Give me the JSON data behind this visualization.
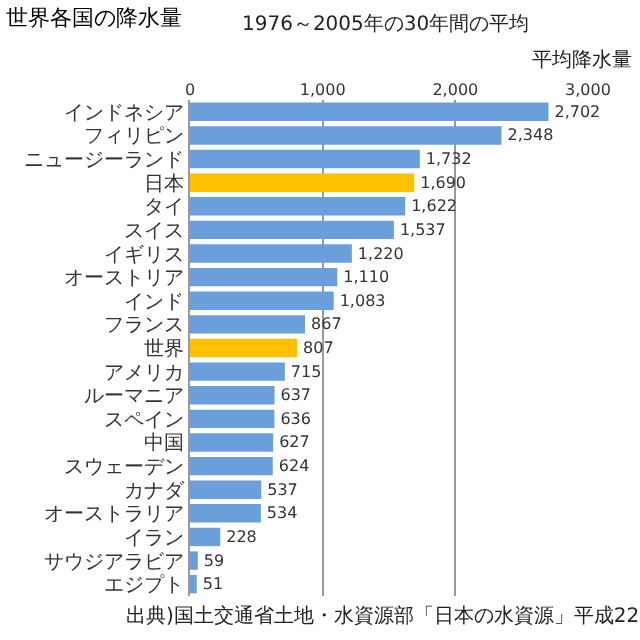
{
  "chart_data": {
    "type": "bar",
    "orientation": "horizontal",
    "title": "世界各国の降水量",
    "subtitle": "1976～2005年の30年間の平均",
    "xlabel": "平均降水量",
    "categories": [
      "インドネシア",
      "フィリピン",
      "ニュージーランド",
      "日本",
      "タイ",
      "スイス",
      "イギリス",
      "オーストリア",
      "インド",
      "フランス",
      "世界",
      "アメリカ",
      "ルーマニア",
      "スペイン",
      "中国",
      "スウェーデン",
      "カナダ",
      "オーストラリア",
      "イラン",
      "サウジアラビア",
      "エジプト"
    ],
    "values": [
      2702,
      2348,
      1732,
      1690,
      1622,
      1537,
      1220,
      1110,
      1083,
      867,
      807,
      715,
      637,
      636,
      627,
      624,
      537,
      534,
      228,
      59,
      51
    ],
    "value_labels": [
      "2,702",
      "2,348",
      "1,732",
      "1,690",
      "1,622",
      "1,537",
      "1,220",
      "1,110",
      "1,083",
      "867",
      "807",
      "715",
      "637",
      "636",
      "627",
      "624",
      "537",
      "534",
      "228",
      "59",
      "51"
    ],
    "colors": [
      "#6a9fdb",
      "#6a9fdb",
      "#6a9fdb",
      "#ffc000",
      "#6a9fdb",
      "#6a9fdb",
      "#6a9fdb",
      "#6a9fdb",
      "#6a9fdb",
      "#6a9fdb",
      "#ffc000",
      "#6a9fdb",
      "#6a9fdb",
      "#6a9fdb",
      "#6a9fdb",
      "#6a9fdb",
      "#6a9fdb",
      "#6a9fdb",
      "#6a9fdb",
      "#6a9fdb",
      "#6a9fdb"
    ],
    "xlim": [
      0,
      3000
    ],
    "xticks": [
      0,
      {
        "value": 1000,
        "label": "1,000"
      },
      {
        "value": 2000,
        "label": "2,000"
      },
      {
        "value": 3000,
        "label": "3,000"
      }
    ],
    "grid": "x",
    "annotations": [
      "出典)国土交通省土地・水資源部「日本の水資源」平成22"
    ]
  }
}
